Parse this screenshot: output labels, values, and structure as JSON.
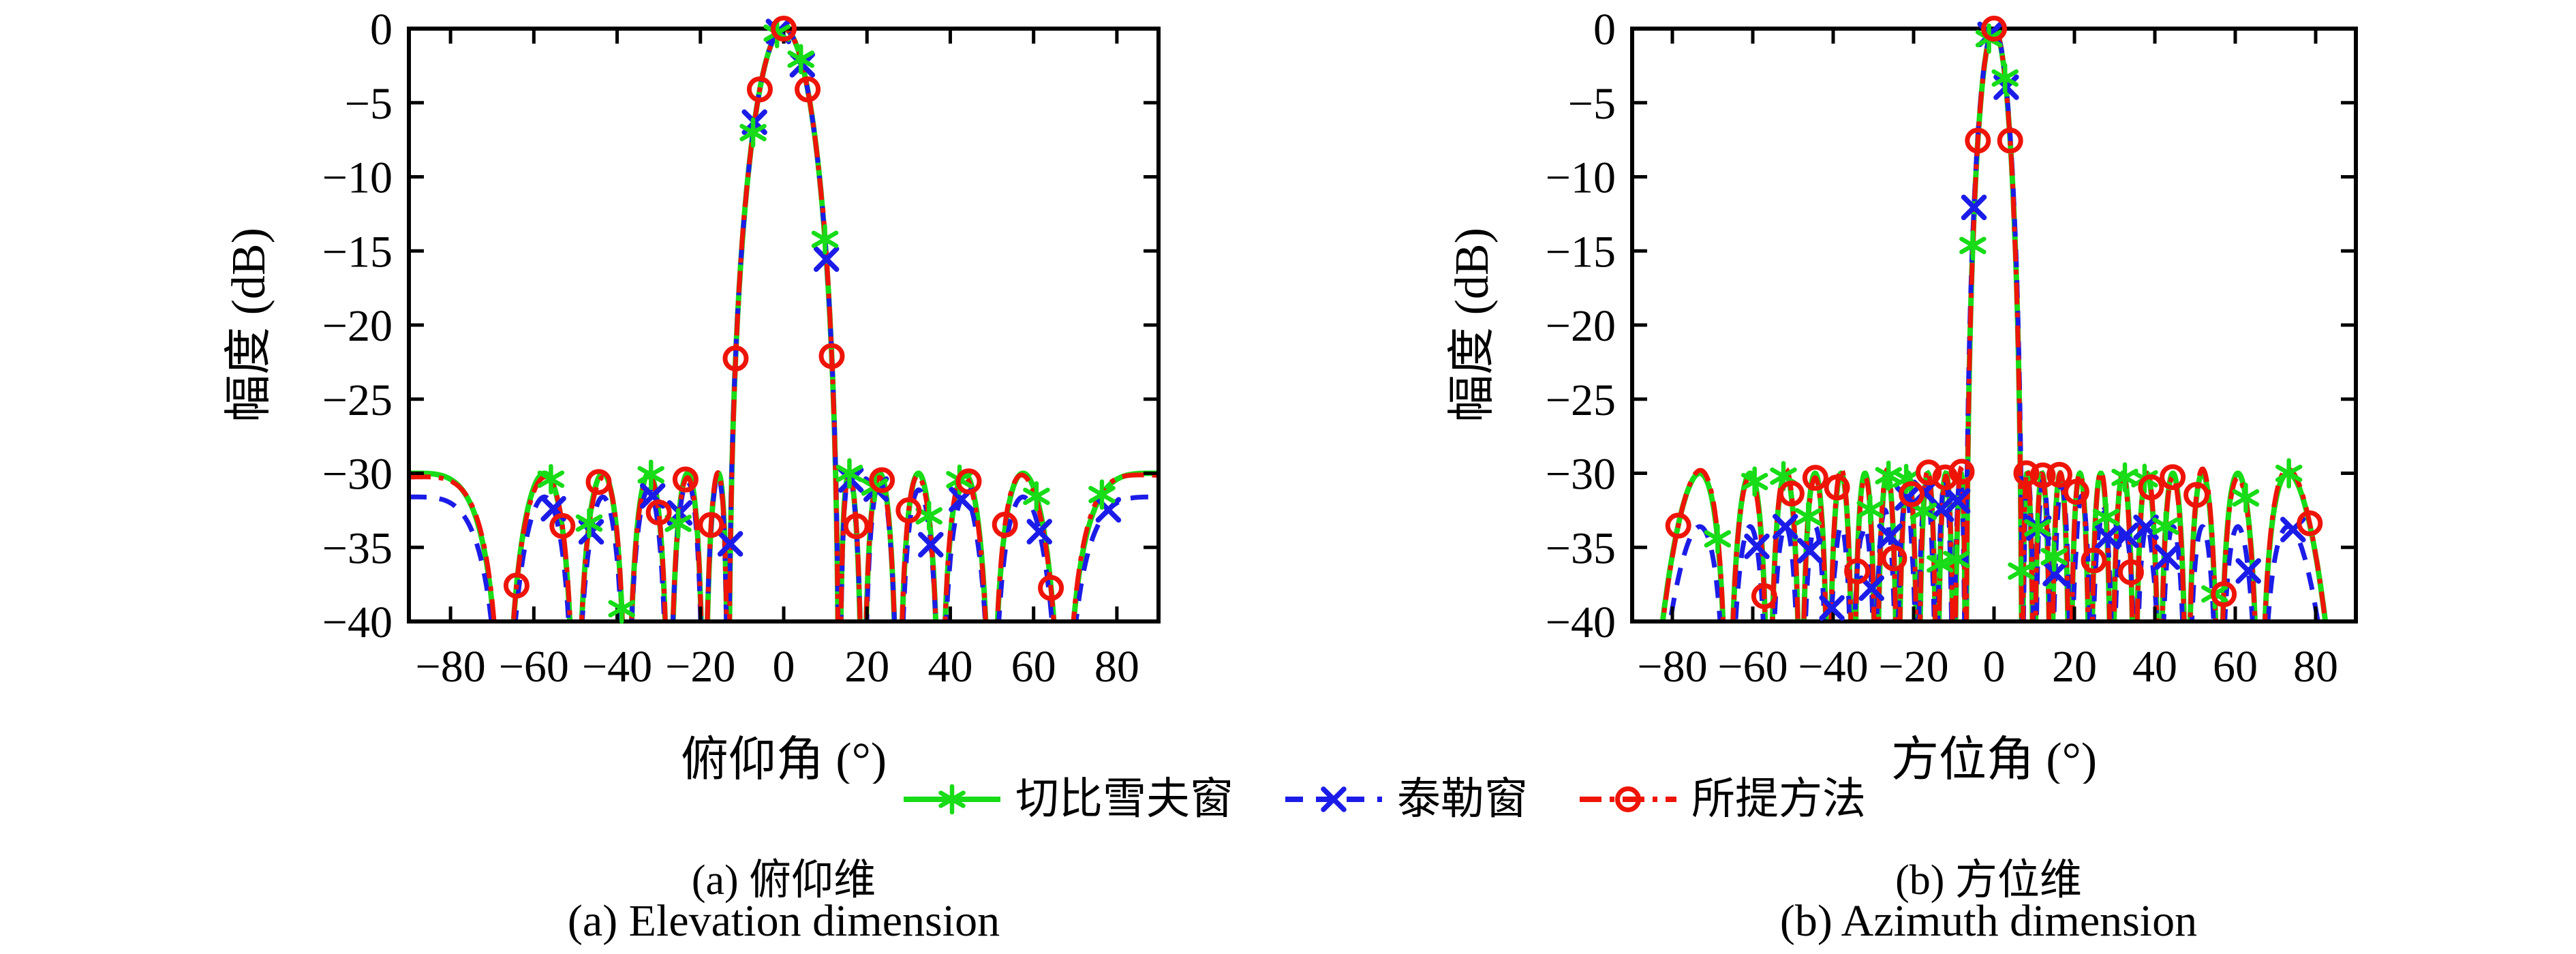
{
  "legend": {
    "items": [
      {
        "slug": "chebyshev-window",
        "label": "切比雪夫窗",
        "color": "#17dc17",
        "line": "solid",
        "marker": "asterisk"
      },
      {
        "slug": "taylor-window",
        "label": "泰勒窗",
        "color": "#1c1ce8",
        "line": "dashed",
        "marker": "x"
      },
      {
        "slug": "proposed-method",
        "label": "所提方法",
        "color": "#ee1408",
        "line": "dashdot",
        "marker": "circle"
      }
    ]
  },
  "chart_data": [
    {
      "id": "elevation",
      "type": "line",
      "title_zh": "(a) 俯仰维",
      "title_en": "(a) Elevation dimension",
      "xlabel": "俯仰角 (°)",
      "ylabel": "幅度 (dB)",
      "xlim": [
        -90,
        90
      ],
      "ylim": [
        -40,
        0
      ],
      "grid": false,
      "legend_position": "below-figure",
      "xticks": [
        {
          "v": -80,
          "t": "−80"
        },
        {
          "v": -60,
          "t": "−60"
        },
        {
          "v": -40,
          "t": "−40"
        },
        {
          "v": -20,
          "t": "−20"
        },
        {
          "v": 0,
          "t": "0"
        },
        {
          "v": 20,
          "t": "20"
        },
        {
          "v": 40,
          "t": "40"
        },
        {
          "v": 60,
          "t": "60"
        },
        {
          "v": 80,
          "t": "80"
        }
      ],
      "yticks": [
        {
          "v": 0,
          "t": "0"
        },
        {
          "v": -5,
          "t": "−5"
        },
        {
          "v": -10,
          "t": "−10"
        },
        {
          "v": -15,
          "t": "−15"
        },
        {
          "v": -20,
          "t": "−20"
        },
        {
          "v": -25,
          "t": "−25"
        },
        {
          "v": -30,
          "t": "−30"
        },
        {
          "v": -35,
          "t": "−35"
        },
        {
          "v": -40,
          "t": "−40"
        }
      ],
      "series": [
        {
          "slug": "chebyshev-window",
          "name": "切比雪夫窗",
          "color": "#17dc17",
          "line": "solid",
          "marker": "asterisk",
          "width": 8,
          "model": {
            "kind": "chebyshev",
            "elements": 13,
            "sll_db": -30
          },
          "markers": {
            "sin_step": 0.1,
            "sin_offset": 0.072
          }
        },
        {
          "slug": "taylor-window",
          "name": "泰勒窗",
          "color": "#1c1ce8",
          "line": "dashed",
          "marker": "x",
          "width": 7,
          "model": {
            "kind": "taylor",
            "aperture_wavelengths": 6.5,
            "sll_db": -30,
            "nbar": 5,
            "floor_offset_db": 1.6,
            "ref_elements": 13
          },
          "markers": {
            "sin_step": 0.1,
            "sin_offset": 0.078
          }
        },
        {
          "slug": "proposed-method",
          "name": "所提方法",
          "color": "#ee1408",
          "line": "dashdot",
          "marker": "circle",
          "width": 7,
          "model": {
            "kind": "chebyshev",
            "elements": 13,
            "sll_db": -30,
            "ripple_db": 0.3
          },
          "markers": {
            "sin_step": 0.1,
            "sin_offset": 0
          }
        }
      ],
      "key_points": [
        {
          "deg": 0,
          "db": 0
        },
        {
          "deg": -6,
          "db": -3.7
        },
        {
          "deg": 6,
          "db": -3.7
        },
        {
          "deg": -10,
          "db": -12
        },
        {
          "deg": 10,
          "db": -12
        },
        {
          "deg": -11.6,
          "db": -19
        },
        {
          "deg": 11.6,
          "db": -19
        }
      ],
      "annotations": {
        "mainlobe_peak_db": 0,
        "sidelobe_level_db": -30,
        "first_null_deg": 13.5,
        "taylor_far_sidelobe_db": -34,
        "sidelobes_per_side": 6
      }
    },
    {
      "id": "azimuth",
      "type": "line",
      "title_zh": "(b) 方位维",
      "title_en": "(b) Azimuth dimension",
      "xlabel": "方位角 (°)",
      "ylabel": "幅度 (dB)",
      "xlim": [
        -90,
        90
      ],
      "ylim": [
        -40,
        0
      ],
      "grid": false,
      "legend_position": "below-figure",
      "xticks": [
        {
          "v": -80,
          "t": "−80"
        },
        {
          "v": -60,
          "t": "−60"
        },
        {
          "v": -40,
          "t": "−40"
        },
        {
          "v": -20,
          "t": "−20"
        },
        {
          "v": 0,
          "t": "0"
        },
        {
          "v": 20,
          "t": "20"
        },
        {
          "v": 40,
          "t": "40"
        },
        {
          "v": 60,
          "t": "60"
        },
        {
          "v": 80,
          "t": "80"
        }
      ],
      "yticks": [
        {
          "v": 0,
          "t": "0"
        },
        {
          "v": -5,
          "t": "−5"
        },
        {
          "v": -10,
          "t": "−10"
        },
        {
          "v": -15,
          "t": "−15"
        },
        {
          "v": -20,
          "t": "−20"
        },
        {
          "v": -25,
          "t": "−25"
        },
        {
          "v": -30,
          "t": "−30"
        },
        {
          "v": -35,
          "t": "−35"
        },
        {
          "v": -40,
          "t": "−40"
        }
      ],
      "series": [
        {
          "slug": "chebyshev-window",
          "name": "切比雪夫窗",
          "color": "#17dc17",
          "line": "solid",
          "marker": "asterisk",
          "width": 8,
          "model": {
            "kind": "chebyshev",
            "elements": 24,
            "sll_db": -30
          },
          "markers": {
            "sin_step": 0.07,
            "sin_offset": 0.048
          }
        },
        {
          "slug": "taylor-window",
          "name": "泰勒窗",
          "color": "#1c1ce8",
          "line": "dashed",
          "marker": "x",
          "width": 7,
          "model": {
            "kind": "taylor",
            "aperture_wavelengths": 12,
            "sll_db": -30,
            "nbar": 6,
            "floor_offset_db": 3.6,
            "ref_elements": 24
          },
          "markers": {
            "sin_step": 0.07,
            "sin_offset": 0.053
          }
        },
        {
          "slug": "proposed-method",
          "name": "所提方法",
          "color": "#ee1408",
          "line": "dashdot",
          "marker": "circle",
          "width": 7,
          "model": {
            "kind": "chebyshev",
            "elements": 24,
            "sll_db": -30,
            "ripple_db": 0.3
          },
          "markers": {
            "sin_step": 0.07,
            "sin_offset": 0
          }
        }
      ],
      "key_points": [
        {
          "deg": 0,
          "db": 0
        },
        {
          "deg": -4,
          "db": -7.2
        },
        {
          "deg": 4,
          "db": -7.2
        }
      ],
      "annotations": {
        "mainlobe_peak_db": 0,
        "sidelobe_level_db": -30,
        "first_null_deg": 7.2,
        "taylor_far_sidelobe_db": -33.5,
        "sidelobes_per_side": 11
      }
    }
  ]
}
